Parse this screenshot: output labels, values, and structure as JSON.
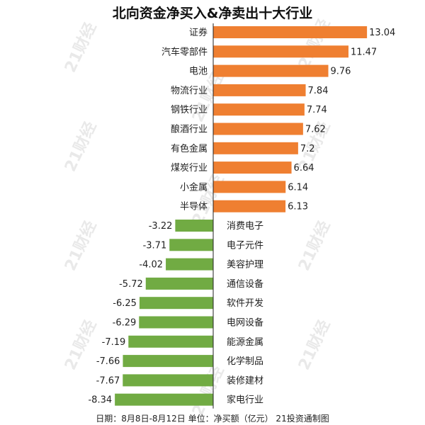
{
  "chart_data": {
    "type": "bar",
    "orientation": "horizontal",
    "title": "北向资金净买入&净卖出十大行业",
    "footer": "日期：8月8日-8月12日 单位：净买额（亿元） 21投资通制图",
    "watermark": "21财经",
    "categories": [
      "证券",
      "汽车零部件",
      "电池",
      "物流行业",
      "钢铁行业",
      "酿酒行业",
      "有色金属",
      "煤炭行业",
      "小金属",
      "半导体",
      "消费电子",
      "电子元件",
      "美容护理",
      "通信设备",
      "软件开发",
      "电网设备",
      "能源金属",
      "化学制品",
      "装修建材",
      "家电行业"
    ],
    "values": [
      13.04,
      11.47,
      9.76,
      7.84,
      7.74,
      7.62,
      7.2,
      6.64,
      6.14,
      6.13,
      -3.22,
      -3.71,
      -4.02,
      -5.72,
      -6.25,
      -6.29,
      -7.19,
      -7.66,
      -7.67,
      -8.34
    ],
    "value_labels": [
      "13.04",
      "11.47",
      "9.76",
      "7.84",
      "7.74",
      "7.62",
      "7.2",
      "6.64",
      "6.14",
      "6.13",
      "-3.22",
      "-3.71",
      "-4.02",
      "-5.72",
      "-6.25",
      "-6.29",
      "-7.19",
      "-7.66",
      "-7.67",
      "-8.34"
    ],
    "colors": {
      "positive": "#ef7f31",
      "negative": "#71ab43",
      "axis": "#222222"
    },
    "xlim": [
      -8.34,
      13.04
    ],
    "grid": false,
    "legend": "none"
  }
}
